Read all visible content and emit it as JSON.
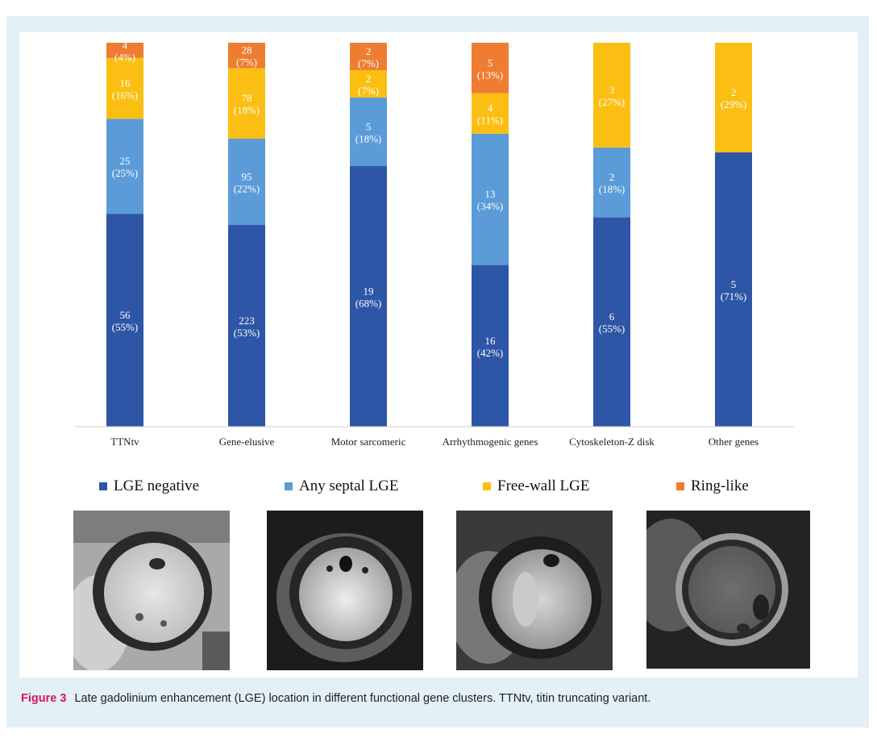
{
  "chart_data": {
    "type": "bar",
    "stacked": true,
    "normalized": true,
    "categories": [
      "TTNtv",
      "Gene-elusive",
      "Motor sarcomeric",
      "Arrhythmogenic genes",
      "Cytoskeleton-Z disk",
      "Other genes"
    ],
    "series": [
      {
        "name": "LGE negative",
        "color": "#2e56a6",
        "values": [
          56,
          223,
          19,
          16,
          6,
          5
        ],
        "percents": [
          "(55%)",
          "(53%)",
          "(68%)",
          "(42%)",
          "(55%)",
          "(71%)"
        ]
      },
      {
        "name": "Any septal LGE",
        "color": "#5b9bd8",
        "values": [
          25,
          95,
          5,
          13,
          2,
          null
        ],
        "percents": [
          "(25%)",
          "(22%)",
          "(18%)",
          "(34%)",
          "(18%)",
          null
        ]
      },
      {
        "name": "Free-wall LGE",
        "color": "#fbbf13",
        "values": [
          16,
          78,
          2,
          4,
          3,
          2
        ],
        "percents": [
          "(16%)",
          "(18%)",
          "(7%)",
          "(11%)",
          "(27%)",
          "(29%)"
        ]
      },
      {
        "name": "Ring-like",
        "color": "#ee7d31",
        "values": [
          4,
          28,
          2,
          5,
          null,
          null
        ],
        "percents": [
          "(4%)",
          "(7%)",
          "(7%)",
          "(13%)",
          null,
          null
        ]
      }
    ],
    "ylim": [
      0,
      100
    ],
    "legend_position": "bottom"
  },
  "caption": {
    "label": "Figure 3",
    "text": "Late gadolinium enhancement (LGE) location in different functional gene clusters. TTNtv, titin truncating variant."
  },
  "images": [
    {
      "name": "mri-lge-negative"
    },
    {
      "name": "mri-septal-lge"
    },
    {
      "name": "mri-free-wall-lge"
    },
    {
      "name": "mri-ring-like-lge"
    }
  ]
}
